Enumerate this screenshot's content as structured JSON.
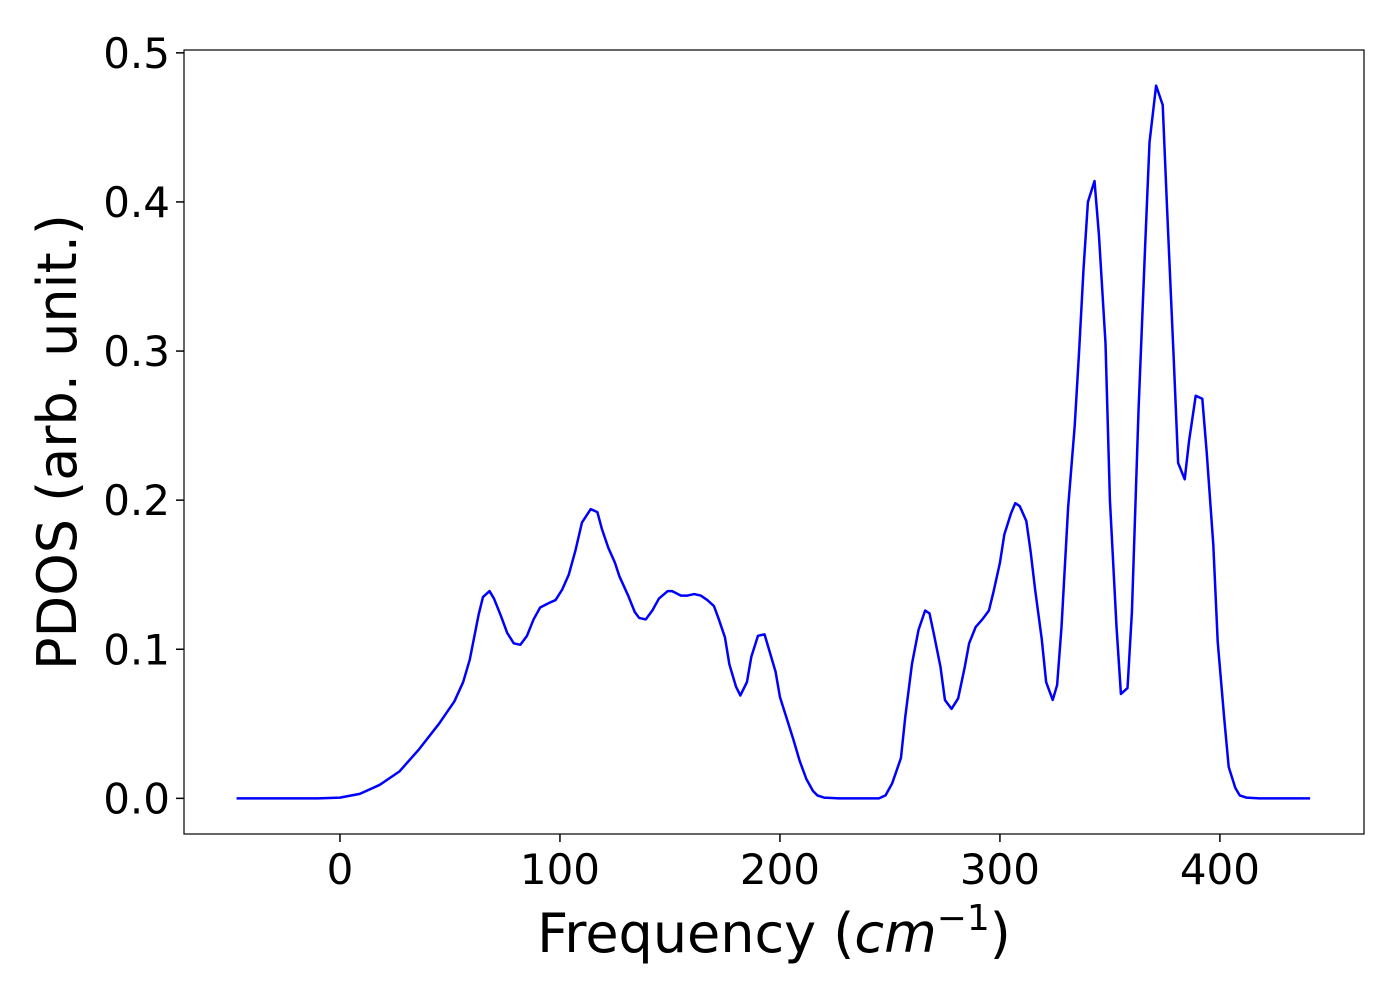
{
  "chart_data": {
    "type": "line",
    "xlabel": [
      "Frequency (",
      "cm",
      "−1",
      ")"
    ],
    "ylabel": "PDOS (arb. unit.)",
    "xlim": [
      -70.9,
      465.5
    ],
    "ylim": [
      -0.0239,
      0.5019
    ],
    "xticks": [
      0,
      100,
      200,
      300,
      400
    ],
    "yticks": [
      {
        "value": 0,
        "label": "0.0"
      },
      0.1,
      0.2,
      0.3,
      0.4,
      0.5
    ],
    "series": [
      {
        "name": "PDOS",
        "color": "#0000ff",
        "x": [
          -47,
          -10,
          0,
          9,
          18,
          27,
          36,
          45,
          52,
          56,
          59,
          63,
          65,
          68,
          70,
          73,
          76,
          79,
          82,
          85,
          88,
          91,
          95,
          98,
          101,
          104,
          107,
          110,
          114,
          117,
          119,
          122,
          125,
          127,
          131,
          134,
          136,
          139,
          142,
          145,
          149,
          151,
          155,
          158,
          161,
          164,
          167,
          170,
          172,
          175,
          177,
          180,
          182,
          185,
          187,
          190,
          193,
          195,
          198,
          200,
          203,
          206,
          209,
          212,
          215,
          217,
          220,
          227,
          245,
          248,
          251,
          255,
          257,
          260,
          263,
          266,
          268,
          270,
          273,
          275,
          278,
          281,
          284,
          286,
          289,
          292,
          295,
          297,
          300,
          302,
          305,
          307,
          309,
          312,
          314,
          316,
          319,
          321,
          324,
          326,
          328,
          331,
          334,
          336,
          338,
          340,
          343,
          345,
          348,
          350,
          353,
          355,
          358,
          360,
          363,
          366,
          368,
          371,
          374,
          376,
          379,
          381,
          384,
          386,
          389,
          392,
          394,
          397,
          399,
          402,
          404,
          407,
          409,
          412,
          418,
          441
        ],
        "values": [
          0,
          0,
          0.0005,
          0.003,
          0.009,
          0.018,
          0.033,
          0.05,
          0.065,
          0.078,
          0.093,
          0.123,
          0.135,
          0.139,
          0.134,
          0.123,
          0.111,
          0.104,
          0.103,
          0.109,
          0.12,
          0.128,
          0.131,
          0.133,
          0.14,
          0.15,
          0.166,
          0.185,
          0.194,
          0.192,
          0.181,
          0.168,
          0.158,
          0.149,
          0.136,
          0.125,
          0.121,
          0.12,
          0.126,
          0.134,
          0.139,
          0.139,
          0.136,
          0.136,
          0.137,
          0.136,
          0.133,
          0.129,
          0.121,
          0.108,
          0.09,
          0.075,
          0.069,
          0.078,
          0.095,
          0.109,
          0.11,
          0.1,
          0.085,
          0.068,
          0.054,
          0.04,
          0.025,
          0.013,
          0.005,
          0.002,
          0.0005,
          0,
          0,
          0.002,
          0.01,
          0.027,
          0.055,
          0.09,
          0.113,
          0.126,
          0.124,
          0.11,
          0.088,
          0.066,
          0.06,
          0.067,
          0.088,
          0.104,
          0.115,
          0.12,
          0.126,
          0.138,
          0.158,
          0.177,
          0.191,
          0.198,
          0.196,
          0.186,
          0.165,
          0.14,
          0.107,
          0.078,
          0.066,
          0.076,
          0.115,
          0.195,
          0.25,
          0.3,
          0.355,
          0.4,
          0.414,
          0.378,
          0.305,
          0.2,
          0.115,
          0.07,
          0.074,
          0.125,
          0.26,
          0.37,
          0.44,
          0.478,
          0.465,
          0.395,
          0.295,
          0.225,
          0.214,
          0.24,
          0.27,
          0.268,
          0.232,
          0.17,
          0.105,
          0.053,
          0.021,
          0.007,
          0.002,
          0.0005,
          0,
          0
        ]
      }
    ]
  }
}
